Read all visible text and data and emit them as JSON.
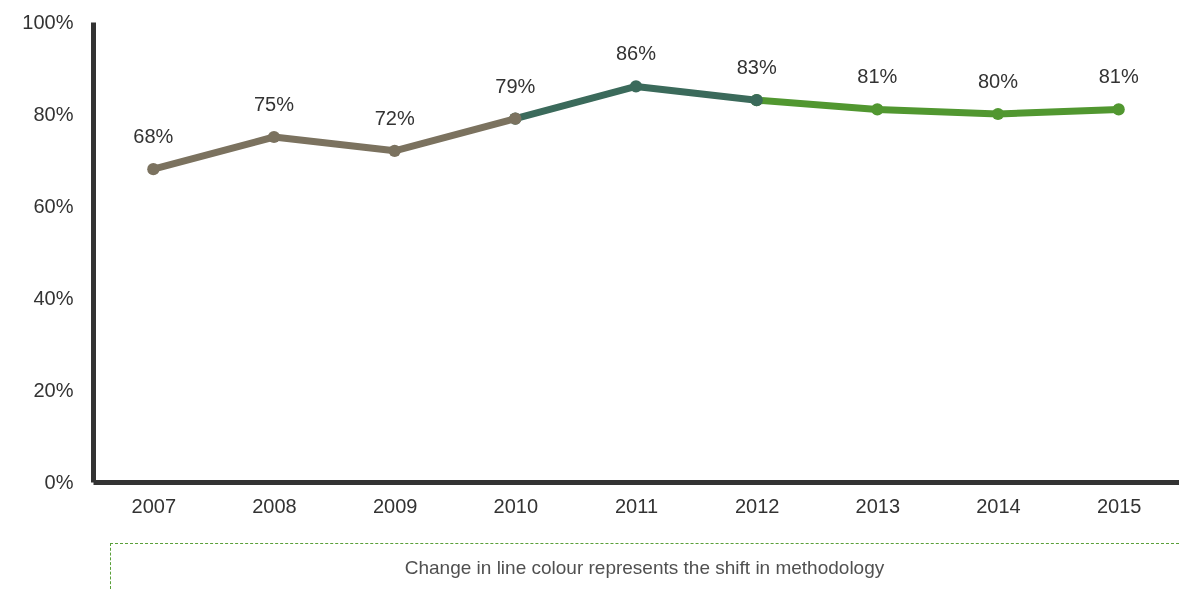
{
  "chart_data": {
    "type": "line",
    "categories": [
      "2007",
      "2008",
      "2009",
      "2010",
      "2011",
      "2012",
      "2013",
      "2014",
      "2015"
    ],
    "series": [
      {
        "color": "#7b725f",
        "values": [
          68,
          75,
          72,
          79,
          null,
          null,
          null,
          null,
          null
        ],
        "value_labels": [
          "68%",
          "75%",
          "72%",
          "79%",
          null,
          null,
          null,
          null,
          null
        ]
      },
      {
        "color": "#3b6a5b",
        "values": [
          null,
          null,
          null,
          79,
          86,
          83,
          null,
          null,
          null
        ],
        "value_labels": [
          null,
          null,
          null,
          null,
          "86%",
          "83%",
          null,
          null,
          null
        ]
      },
      {
        "color": "#519730",
        "values": [
          null,
          null,
          null,
          null,
          null,
          83,
          81,
          80,
          81
        ],
        "value_labels": [
          null,
          null,
          null,
          null,
          null,
          null,
          "81%",
          "80%",
          "81%"
        ]
      }
    ],
    "ylim": [
      0,
      100
    ],
    "yticks": [
      {
        "value": 0,
        "label": "0%"
      },
      {
        "value": 20,
        "label": "20%"
      },
      {
        "value": 40,
        "label": "40%"
      },
      {
        "value": 60,
        "label": "60%"
      },
      {
        "value": 80,
        "label": "80%"
      },
      {
        "value": 100,
        "label": "100%"
      }
    ],
    "marker": "circle",
    "annotations": [
      "Change in line colour represents the shift in methodology"
    ]
  }
}
